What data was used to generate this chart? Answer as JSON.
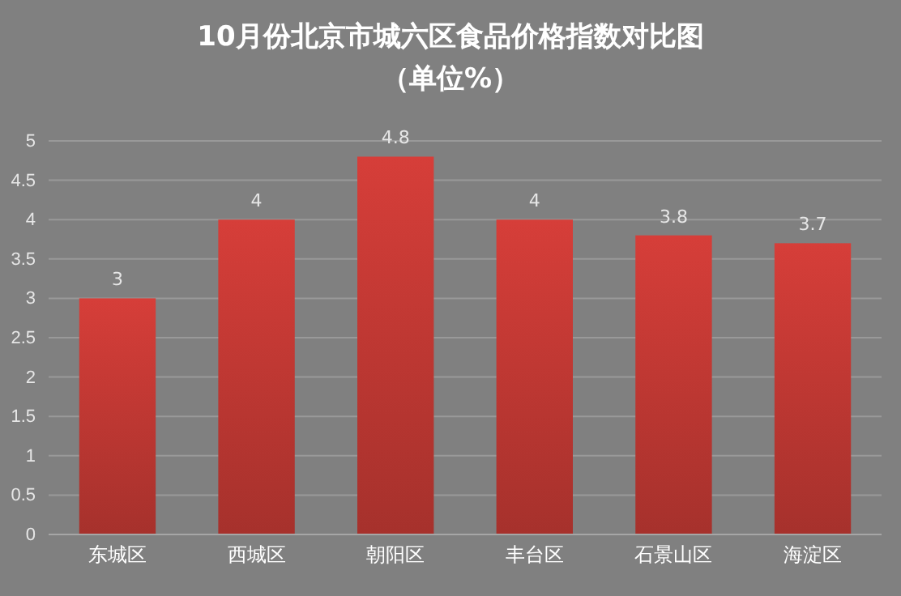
{
  "chart_data": {
    "type": "bar",
    "title": "10月份北京市城六区食品价格指数对比图",
    "subtitle": "（单位%）",
    "categories": [
      "东城区",
      "西城区",
      "朝阳区",
      "丰台区",
      "石景山区",
      "海淀区"
    ],
    "values": [
      3,
      4,
      4.8,
      4,
      3.8,
      3.7
    ],
    "color": "#c73a35",
    "ylim": [
      0,
      5
    ],
    "yticks": [
      0,
      0.5,
      1,
      1.5,
      2,
      2.5,
      3,
      3.5,
      4,
      4.5,
      5
    ],
    "grid": "y",
    "data_labels": true
  }
}
